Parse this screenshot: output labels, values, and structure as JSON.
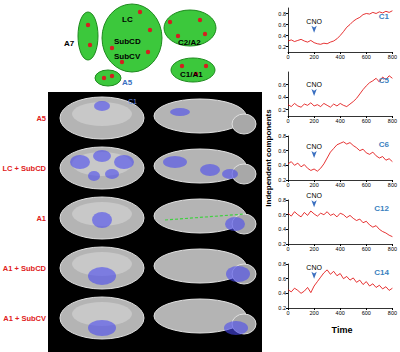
{
  "schematic": {
    "labels": [
      "A7",
      "LC",
      "SubCD",
      "SubCV",
      "C2/A2",
      "A5",
      "C1/A1"
    ]
  },
  "brain_panels": {
    "rows": [
      "A5",
      "LC + SubCD",
      "A1",
      "A1 + SubCD",
      "A1 + SubCV"
    ],
    "inset_label": "C1"
  },
  "y_label": "Independent components",
  "x_label": "Time",
  "chart_data": [
    {
      "type": "line",
      "title": "C1",
      "color": "#e00000",
      "x": [
        0,
        25,
        50,
        75,
        100,
        125,
        150,
        175,
        200,
        225,
        250,
        275,
        300,
        325,
        350,
        375,
        400,
        425,
        450,
        475,
        500,
        525,
        550,
        575,
        600,
        625,
        650,
        675,
        700,
        725,
        750,
        775,
        800
      ],
      "values": [
        0.3,
        0.32,
        0.29,
        0.31,
        0.33,
        0.3,
        0.28,
        0.31,
        0.27,
        0.25,
        0.24,
        0.26,
        0.25,
        0.28,
        0.3,
        0.34,
        0.4,
        0.47,
        0.55,
        0.6,
        0.66,
        0.7,
        0.73,
        0.78,
        0.8,
        0.79,
        0.82,
        0.8,
        0.83,
        0.81,
        0.84,
        0.82,
        0.85
      ],
      "xlim": [
        0,
        800
      ],
      "xticks": [
        0,
        200,
        400,
        600,
        800
      ],
      "ylim": [
        0.1,
        0.9
      ],
      "yticks": [
        0.2,
        0.4,
        0.6,
        0.8
      ],
      "annotations": [
        {
          "text": "CNO",
          "x": 200,
          "y": 0.45
        }
      ]
    },
    {
      "type": "line",
      "title": "C5",
      "color": "#e00000",
      "x": [
        0,
        25,
        50,
        75,
        100,
        125,
        150,
        175,
        200,
        225,
        250,
        275,
        300,
        325,
        350,
        375,
        400,
        425,
        450,
        475,
        500,
        525,
        550,
        575,
        600,
        625,
        650,
        675,
        700,
        725,
        750,
        775,
        800
      ],
      "values": [
        0.28,
        0.25,
        0.3,
        0.26,
        0.24,
        0.29,
        0.27,
        0.31,
        0.26,
        0.28,
        0.25,
        0.3,
        0.27,
        0.24,
        0.29,
        0.26,
        0.3,
        0.27,
        0.25,
        0.29,
        0.33,
        0.38,
        0.45,
        0.52,
        0.58,
        0.63,
        0.66,
        0.7,
        0.64,
        0.72,
        0.68,
        0.74,
        0.7
      ],
      "xlim": [
        0,
        800
      ],
      "xticks": [
        0,
        200,
        400,
        600,
        800
      ],
      "ylim": [
        0.1,
        0.8
      ],
      "yticks": [
        0.2,
        0.4,
        0.6
      ],
      "annotations": [
        {
          "text": "CNO",
          "x": 200,
          "y": 0.42
        }
      ]
    },
    {
      "type": "line",
      "title": "C6",
      "color": "#e00000",
      "x": [
        0,
        25,
        50,
        75,
        100,
        125,
        150,
        175,
        200,
        225,
        250,
        275,
        300,
        325,
        350,
        375,
        400,
        425,
        450,
        475,
        500,
        525,
        550,
        575,
        600,
        625,
        650,
        675,
        700,
        725,
        750,
        775,
        800
      ],
      "values": [
        0.42,
        0.45,
        0.4,
        0.43,
        0.38,
        0.41,
        0.36,
        0.33,
        0.35,
        0.32,
        0.36,
        0.42,
        0.5,
        0.58,
        0.63,
        0.68,
        0.7,
        0.72,
        0.69,
        0.71,
        0.67,
        0.64,
        0.6,
        0.62,
        0.57,
        0.55,
        0.58,
        0.53,
        0.5,
        0.52,
        0.47,
        0.49,
        0.45
      ],
      "xlim": [
        0,
        800
      ],
      "xticks": [
        0,
        200,
        400,
        600,
        800
      ],
      "ylim": [
        0.2,
        0.8
      ],
      "yticks": [
        0.2,
        0.4,
        0.6,
        0.8
      ],
      "annotations": [
        {
          "text": "CNO",
          "x": 200,
          "y": 0.5
        }
      ]
    },
    {
      "type": "line",
      "title": "C12",
      "color": "#e00000",
      "x": [
        0,
        25,
        50,
        75,
        100,
        125,
        150,
        175,
        200,
        225,
        250,
        275,
        300,
        325,
        350,
        375,
        400,
        425,
        450,
        475,
        500,
        525,
        550,
        575,
        600,
        625,
        650,
        675,
        700,
        725,
        750,
        775,
        800
      ],
      "values": [
        0.62,
        0.58,
        0.64,
        0.6,
        0.57,
        0.63,
        0.59,
        0.65,
        0.61,
        0.58,
        0.62,
        0.6,
        0.64,
        0.59,
        0.61,
        0.57,
        0.62,
        0.6,
        0.56,
        0.59,
        0.55,
        0.52,
        0.54,
        0.49,
        0.51,
        0.46,
        0.43,
        0.45,
        0.4,
        0.37,
        0.35,
        0.32,
        0.3
      ],
      "xlim": [
        0,
        800
      ],
      "xticks": [
        0,
        200,
        400,
        600,
        800
      ],
      "ylim": [
        0.2,
        0.8
      ],
      "yticks": [
        0.2,
        0.4,
        0.6,
        0.8
      ],
      "annotations": [
        {
          "text": "CNO",
          "x": 200,
          "y": 0.7
        }
      ]
    },
    {
      "type": "line",
      "title": "C14",
      "color": "#e00000",
      "x": [
        0,
        25,
        50,
        75,
        100,
        125,
        150,
        175,
        200,
        225,
        250,
        275,
        300,
        325,
        350,
        375,
        400,
        425,
        450,
        475,
        500,
        525,
        550,
        575,
        600,
        625,
        650,
        675,
        700,
        725,
        750,
        775,
        800
      ],
      "values": [
        0.45,
        0.42,
        0.47,
        0.44,
        0.4,
        0.43,
        0.48,
        0.41,
        0.5,
        0.56,
        0.62,
        0.68,
        0.72,
        0.66,
        0.7,
        0.64,
        0.67,
        0.6,
        0.63,
        0.58,
        0.61,
        0.55,
        0.58,
        0.52,
        0.56,
        0.5,
        0.53,
        0.48,
        0.51,
        0.46,
        0.49,
        0.44,
        0.47
      ],
      "xlim": [
        0,
        800
      ],
      "xticks": [
        0,
        200,
        400,
        600,
        800
      ],
      "ylim": [
        0.2,
        0.8
      ],
      "yticks": [
        0.2,
        0.4,
        0.6,
        0.8
      ],
      "annotations": [
        {
          "text": "CNO",
          "x": 200,
          "y": 0.6
        }
      ]
    }
  ]
}
